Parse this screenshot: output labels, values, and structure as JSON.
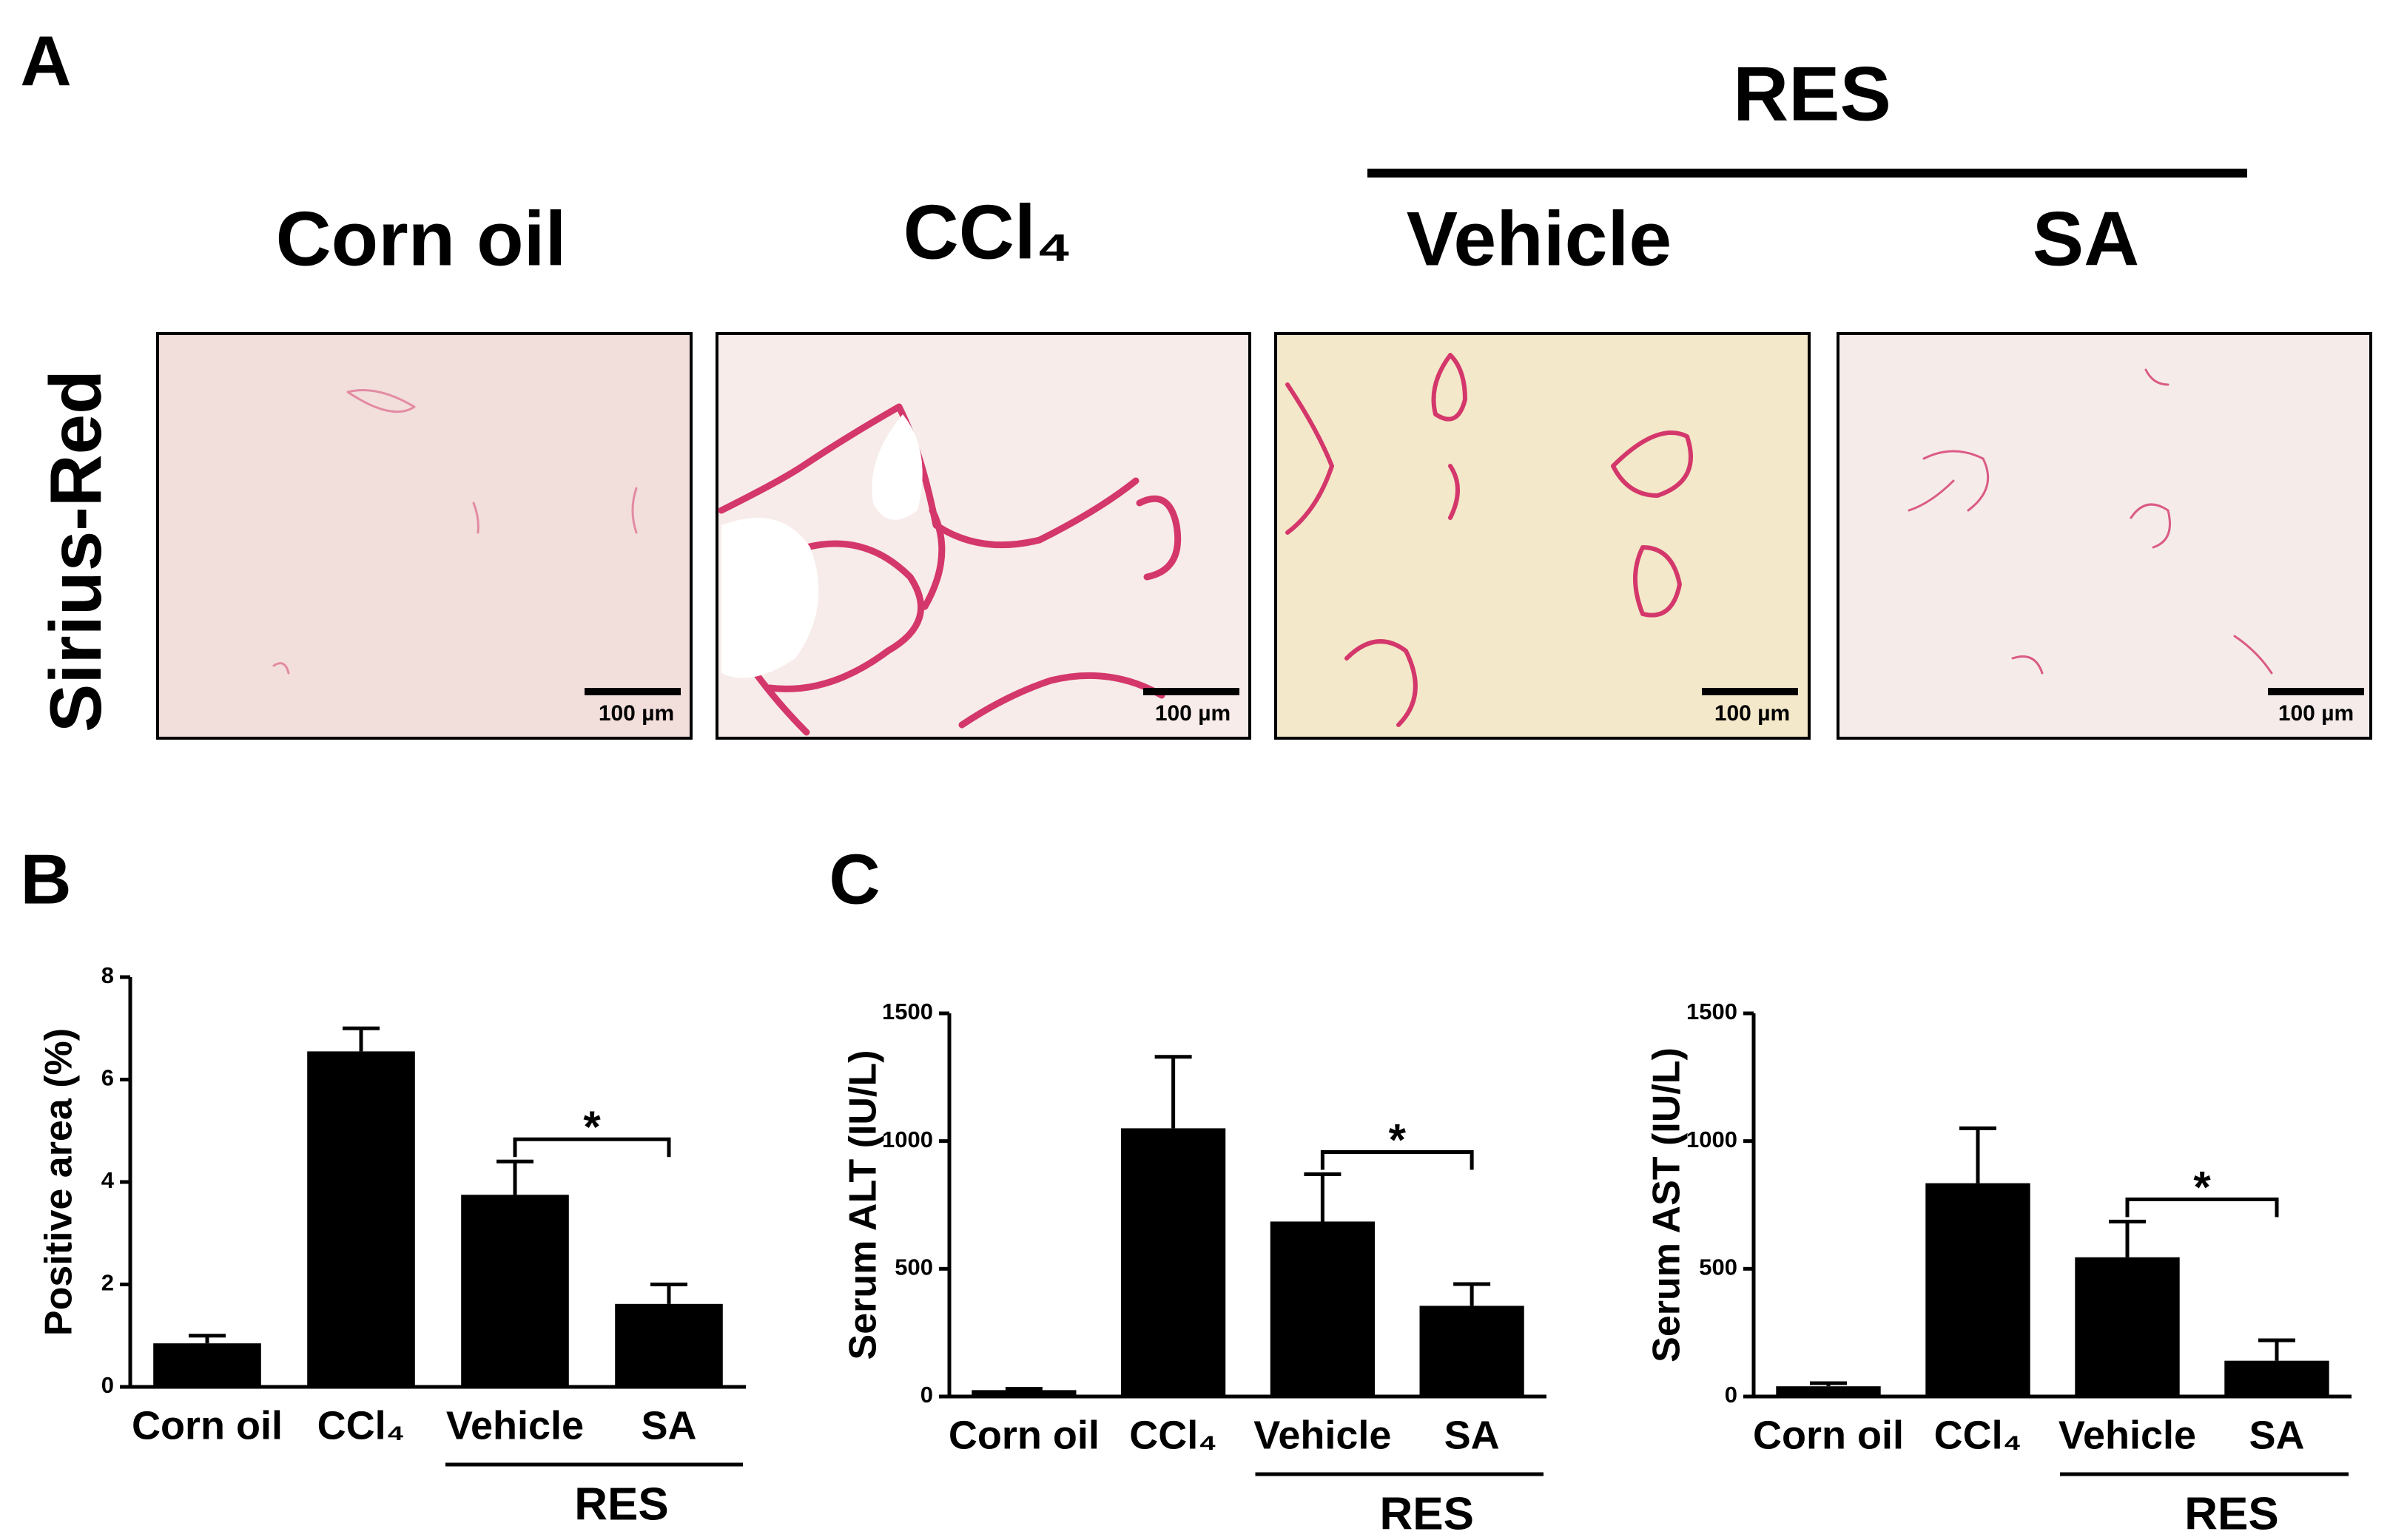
{
  "panel_labels": [
    "A",
    "B",
    "C"
  ],
  "panel_a": {
    "group_label": "RES",
    "columns": [
      "Corn oil",
      "CCl₄",
      "Vehicle",
      "SA"
    ],
    "row_label": "Sirius-Red",
    "scale_bar": "100 µm"
  },
  "chart_data": [
    {
      "type": "bar",
      "ylabel": "Positive area (%)",
      "categories": [
        "Corn oil",
        "CCl₄",
        "Vehicle",
        "SA"
      ],
      "values": [
        0.85,
        6.55,
        3.75,
        1.62
      ],
      "errors": [
        0.15,
        0.45,
        0.65,
        0.38
      ],
      "color": "#000000",
      "ylim": [
        0,
        8
      ],
      "yticks": [
        0,
        2,
        4,
        6,
        8
      ],
      "group_label": "RES",
      "significance_label": "*"
    },
    {
      "type": "bar",
      "ylabel": "Serum ALT (IU/L)",
      "categories": [
        "Corn oil",
        "CCl₄",
        "Vehicle",
        "SA"
      ],
      "values": [
        25,
        1050,
        685,
        355
      ],
      "errors": [
        5,
        280,
        185,
        85
      ],
      "color": "#000000",
      "ylim": [
        0,
        1500
      ],
      "yticks": [
        0,
        500,
        1000,
        1500
      ],
      "group_label": "RES",
      "significance_label": "*"
    },
    {
      "type": "bar",
      "ylabel": "Serum AST (IU/L)",
      "categories": [
        "Corn oil",
        "CCl₄",
        "Vehicle",
        "SA"
      ],
      "values": [
        40,
        835,
        545,
        140
      ],
      "errors": [
        12,
        215,
        140,
        80
      ],
      "color": "#000000",
      "ylim": [
        0,
        1500
      ],
      "yticks": [
        0,
        500,
        1000,
        1500
      ],
      "group_label": "RES",
      "significance_label": "*"
    }
  ]
}
